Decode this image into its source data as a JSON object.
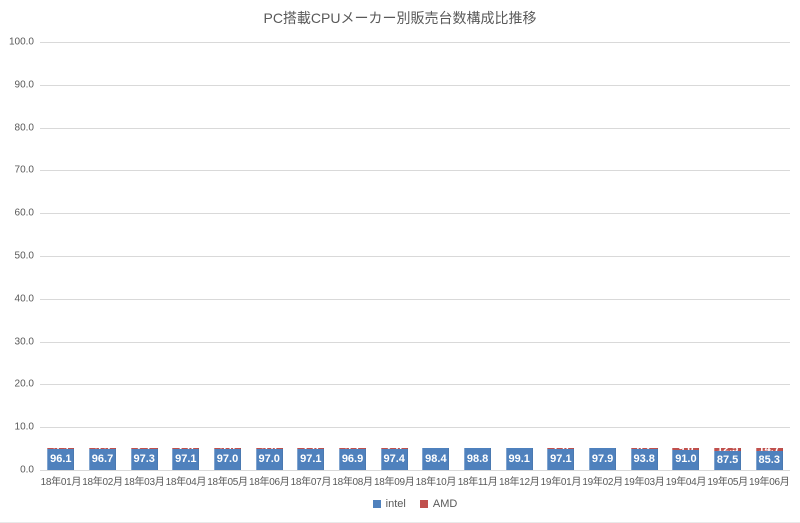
{
  "title": "PC搭載CPUメーカー別販売台数構成比推移",
  "colors": {
    "intel": "#4F81BD",
    "amd": "#C0504D",
    "gridline": "#D9D9D9",
    "axis_text": "#595959",
    "data_label_text": "#FFFFFF"
  },
  "chart_data": {
    "type": "bar",
    "stacked": true,
    "title": "PC搭載CPUメーカー別販売台数構成比推移",
    "categories": [
      "18年01月",
      "18年02月",
      "18年03月",
      "18年04月",
      "18年05月",
      "18年06月",
      "18年07月",
      "18年08月",
      "18年09月",
      "18年10月",
      "18年11月",
      "18年12月",
      "19年01月",
      "19年02月",
      "19年03月",
      "19年04月",
      "19年05月",
      "19年06月"
    ],
    "series": [
      {
        "name": "intel",
        "color": "#4F81BD",
        "values": [
          96.1,
          96.7,
          97.3,
          97.1,
          97.0,
          97.0,
          97.1,
          96.9,
          97.4,
          98.4,
          98.8,
          99.1,
          97.1,
          97.9,
          93.8,
          91.0,
          87.5,
          85.3
        ]
      },
      {
        "name": "AMD",
        "color": "#C0504D",
        "values": [
          3.9,
          3.3,
          2.7,
          2.8,
          3.0,
          3.0,
          2.8,
          3.1,
          2.6,
          1.6,
          1.2,
          0.9,
          2.8,
          2.0,
          6.2,
          9.0,
          12.5,
          14.7
        ]
      }
    ],
    "xlabel": "",
    "ylabel": "",
    "ylim": [
      0,
      100
    ],
    "ytick_step": 10,
    "ytick_labels": [
      "100.0",
      "90.0",
      "80.0",
      "70.0",
      "60.0",
      "50.0",
      "40.0",
      "30.0",
      "20.0",
      "10.0",
      "0.0"
    ],
    "grid": true,
    "data_labels": true,
    "data_label_decimals": 1,
    "legend_position": "bottom"
  }
}
